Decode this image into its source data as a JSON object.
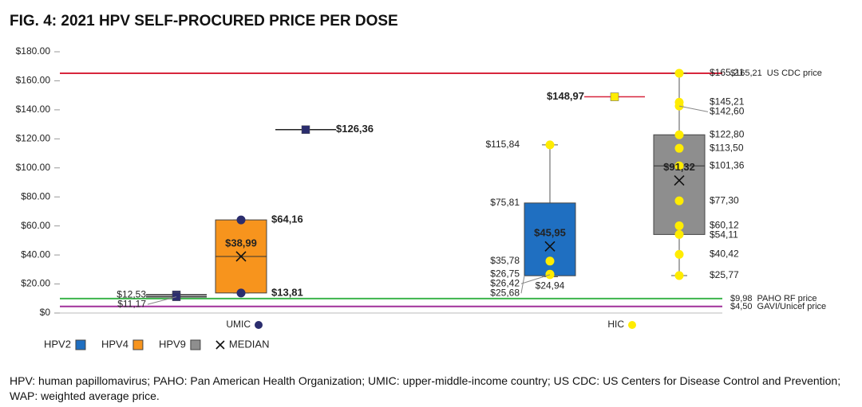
{
  "chart_data": {
    "type": "box",
    "title": "FIG. 4: 2021 HPV SELF-PROCURED PRICE PER DOSE",
    "ylim": [
      0,
      180
    ],
    "yticks": [
      {
        "value": 0,
        "label": "$0"
      },
      {
        "value": 20,
        "label": "$20.00"
      },
      {
        "value": 40,
        "label": "$40.00"
      },
      {
        "value": 60,
        "label": "$60.00"
      },
      {
        "value": 80,
        "label": "$80.00"
      },
      {
        "value": 100,
        "label": "$100.00"
      },
      {
        "value": 120,
        "label": "$120.00"
      },
      {
        "value": 140,
        "label": "$140.00"
      },
      {
        "value": 160,
        "label": "$160.00"
      },
      {
        "value": 180,
        "label": "$180.00"
      }
    ],
    "categories": [
      "UMIC",
      "HIC"
    ],
    "category_colors": [
      "#2b2d6e",
      "#ffec00"
    ],
    "series": [
      {
        "name": "HPV2",
        "color": "#1f6fc1"
      },
      {
        "name": "HPV4",
        "color": "#f7941d"
      },
      {
        "name": "HPV9",
        "color": "#8e8e8e"
      }
    ],
    "median_legend": "MEDIAN",
    "reference_lines": [
      {
        "value": 165.21,
        "value_label": "$165,21",
        "name": "US CDC price",
        "color": "#d7263d"
      },
      {
        "value": 9.98,
        "value_label": "$9,98",
        "name": "PAHO RF price",
        "color": "#3cb44b"
      },
      {
        "value": 4.5,
        "value_label": "$4,50",
        "name": "GAVI/Unicef price",
        "color": "#a0309a"
      }
    ],
    "items": [
      {
        "category": 0,
        "series": 0,
        "line_color": "#222222",
        "label_side": "left",
        "bold": false,
        "points": [
          12.53,
          11.17
        ],
        "point_labels": [
          "$12,53",
          "$11,17"
        ]
      },
      {
        "category": 0,
        "series": 1,
        "label_side": "right",
        "bold": true,
        "box": {
          "low": 13.81,
          "q1": 13.81,
          "median": 38.99,
          "q3": 64.16,
          "high": 64.16
        },
        "mean": 38.99,
        "mean_label": "$38,99",
        "points": [
          64.16,
          13.81
        ],
        "point_labels": [
          "$64,16",
          "$13,81"
        ]
      },
      {
        "category": 0,
        "series": 2,
        "line_color": "#222222",
        "label_side": "right",
        "bold": true,
        "points": [
          126.36
        ],
        "point_labels": [
          "$126,36"
        ]
      },
      {
        "category": 1,
        "series": 0,
        "label_side": "left",
        "bold": false,
        "box": {
          "low": 24.94,
          "q1": 25.68,
          "q3": 75.81,
          "high": 115.84
        },
        "box_labels": {
          "q3": "$75,81",
          "q1": "$25,68",
          "low": "$24,94"
        },
        "mean": 45.95,
        "mean_label": "$45,95",
        "points": [
          115.84,
          35.78,
          26.75,
          26.42
        ],
        "point_labels": [
          "$115,84",
          "$35,78",
          "$26,75",
          "$26,42"
        ]
      },
      {
        "category": 1,
        "series": 1,
        "line_color": "#d7263d",
        "label_side": "left",
        "bold": true,
        "points": [
          148.97
        ],
        "point_labels": [
          "$148,97"
        ]
      },
      {
        "category": 1,
        "series": 2,
        "label_side": "right",
        "bold": false,
        "box": {
          "low": 25.77,
          "q1": 54.11,
          "median": 101.36,
          "q3": 122.8,
          "high": 165.21
        },
        "mean": 91.32,
        "mean_label": "$91,32",
        "points": [
          165.21,
          145.21,
          142.6,
          122.8,
          113.5,
          101.36,
          77.3,
          60.12,
          54.11,
          40.42,
          25.77
        ],
        "point_labels": [
          "$165,21",
          "$145,21",
          "$142,60",
          "$122,80",
          "$113,50",
          "$101,36",
          "$77,30",
          "$60,12",
          "$54,11",
          "$40,42",
          "$25,77"
        ]
      }
    ],
    "footnote": "HPV: human papillomavirus; PAHO: Pan American Health Organization; UMIC: upper-middle-income country; US CDC: US Centers for Disease Control and Prevention; WAP: weighted average price."
  }
}
